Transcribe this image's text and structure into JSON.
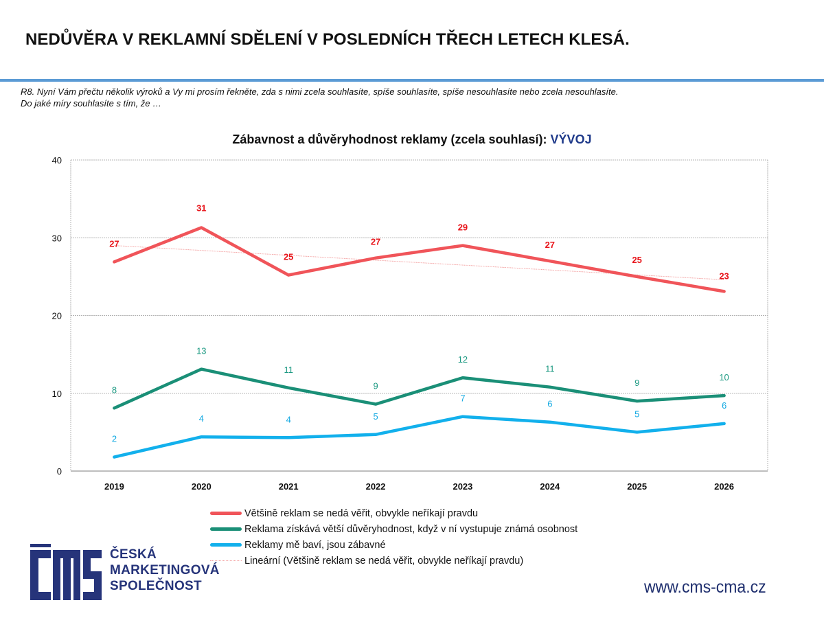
{
  "page": {
    "headline": "NEDŮVĚRA V REKLAMNÍ SDĚLENÍ V POSLEDNÍCH TŘECH LETECH KLESÁ.",
    "question_line1": "R8. Nyní Vám přečtu několik výroků a Vy mi prosím řekněte, zda s nimi zcela souhlasíte, spíše souhlasíte, spíše nesouhlasíte nebo zcela nesouhlasíte.",
    "question_line2": "Do jaké míry souhlasíte s tím, že …",
    "logo_text_line1": "ČESKÁ",
    "logo_text_line2": "MARKETINGOVÁ",
    "logo_text_line3": "SPOLEČNOST",
    "logo_mark": "CMS",
    "website": "www.cms-cma.cz"
  },
  "chart_data": {
    "type": "line",
    "title": "Zábavnost a důvěryhodnost reklamy (zcela souhlasí): ",
    "title_accent": "VÝVOJ",
    "xlabel": "",
    "ylabel": "",
    "ylim": [
      0,
      40
    ],
    "yticks": [
      "0",
      "10",
      "20",
      "30",
      "40"
    ],
    "ytick_values": [
      0,
      10,
      20,
      30,
      40
    ],
    "grid": true,
    "legend_position": "bottom",
    "categories": [
      "2019",
      "2020",
      "2021",
      "2022",
      "2023",
      "2024",
      "2025",
      "2026"
    ],
    "series": [
      {
        "name": "Většině reklam se nedá věřit, obvykle neříkají pravdu",
        "color": "#f05459",
        "label_color": "#e8151b",
        "label_bold": true,
        "values": [
          26.9,
          31.3,
          25.2,
          27.4,
          29.0,
          27.0,
          25.0,
          23.1
        ],
        "labels": [
          "27",
          "31",
          "25",
          "27",
          "29",
          "27",
          "25",
          "23"
        ]
      },
      {
        "name": "Reklama získává větší důvěryhodnost, když v ní vystupuje známá osobnost",
        "color": "#1a8f77",
        "label_color": "#1e9a83",
        "label_bold": false,
        "values": [
          8.1,
          13.1,
          10.7,
          8.6,
          12.0,
          10.8,
          9.0,
          9.7
        ],
        "labels": [
          "8",
          "13",
          "11",
          "9",
          "12",
          "11",
          "9",
          "10"
        ]
      },
      {
        "name": "Reklamy mě baví, jsou zábavné",
        "color": "#12b0ec",
        "label_color": "#12a9e2",
        "label_bold": false,
        "values": [
          1.8,
          4.4,
          4.3,
          4.7,
          7.0,
          6.3,
          5.0,
          6.1
        ],
        "labels": [
          "2",
          "4",
          "4",
          "5",
          "7",
          "6",
          "5",
          "6"
        ]
      }
    ],
    "trendline": {
      "name": "Lineární (Většině reklam se nedá věřit, obvykle neříkají pravdu)",
      "color": "#f4a6a6",
      "start_value": 29.0,
      "end_value": 24.6
    }
  }
}
